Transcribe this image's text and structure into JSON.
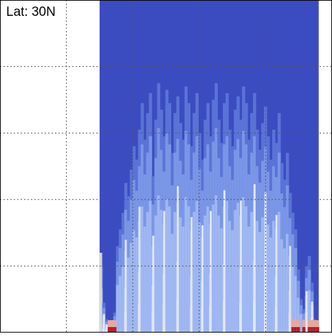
{
  "panel": {
    "label": "Lat: 30N"
  },
  "colors": {
    "background": "#ffffff",
    "grid": "#555555",
    "frame": "#000000",
    "gap": "#d8d8d8",
    "hot": "#b51c2a",
    "warm": "#e8a898"
  },
  "chart_data": {
    "type": "heatmap",
    "title": "",
    "xlabel": "",
    "ylabel": "",
    "grid": true,
    "colormap": [
      "#3b4cc0",
      "#5a73d6",
      "#7a96e6",
      "#9fb7f2",
      "#c5d6f8",
      "#dfe6f2"
    ],
    "x_columns": 80,
    "x_data_start_fraction": 0.3,
    "x_data_end_fraction": 0.96,
    "column_heights": [
      0.24,
      0.09,
      0.04,
      0.03,
      0.02,
      0.06,
      0.26,
      0.31,
      0.36,
      0.45,
      0.41,
      0.49,
      0.56,
      0.52,
      0.61,
      0.69,
      0.58,
      0.66,
      0.72,
      0.47,
      0.64,
      0.75,
      0.67,
      0.59,
      0.73,
      0.69,
      0.54,
      0.66,
      0.71,
      0.63,
      0.58,
      0.74,
      0.69,
      0.56,
      0.66,
      0.72,
      0.6,
      0.52,
      0.64,
      0.69,
      0.59,
      0.7,
      0.75,
      0.64,
      0.57,
      0.69,
      0.72,
      0.61,
      0.56,
      0.67,
      0.71,
      0.64,
      0.74,
      0.69,
      0.58,
      0.66,
      0.72,
      0.61,
      0.55,
      0.63,
      0.68,
      0.59,
      0.52,
      0.61,
      0.57,
      0.66,
      0.51,
      0.46,
      0.54,
      0.42,
      0.36,
      0.31,
      0.19,
      0.1,
      0.07,
      0.2,
      0.23,
      0.15,
      0.04,
      0.02
    ],
    "bright_columns": [
      1,
      2,
      3,
      9,
      14,
      19,
      23,
      28,
      33,
      37,
      40,
      45,
      51,
      56,
      60,
      64,
      69,
      75,
      77
    ],
    "hot_columns": [
      3,
      4,
      5,
      70,
      71,
      72,
      74,
      76,
      77,
      78,
      79
    ]
  }
}
